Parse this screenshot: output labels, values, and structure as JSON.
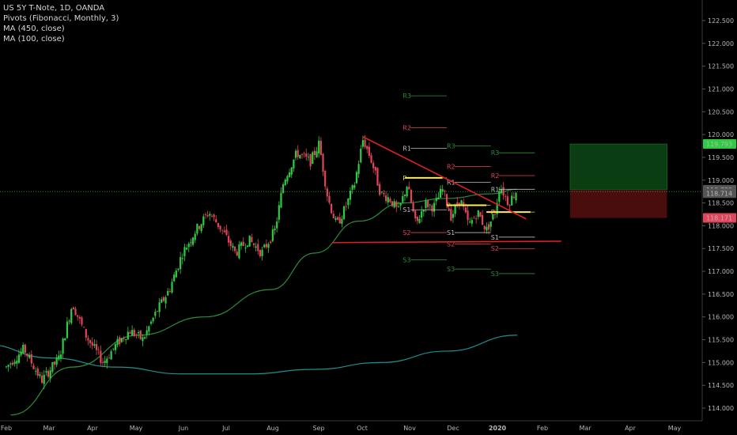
{
  "legend": {
    "symbol": "US 5Y T-Note, 1D, OANDA",
    "pivots": "Pivots (Fibonacci, Monthly, 3)",
    "ma450": "MA (450, close)",
    "ma100": "MA (100, close)"
  },
  "colors": {
    "background": "#000000",
    "candle_up": "#2ecc40",
    "candle_down": "#e0455a",
    "ma100": "#2e8b3a",
    "ma450": "#1f8f8f",
    "trendline": "#e02020",
    "support_line": "#ffee55",
    "pivot_r": "#e0455a",
    "pivot_s": "#e0455a",
    "pivot_r3": "#2e8b3a",
    "pivot_neutral": "#cccccc",
    "target_zone": "#0b3d12",
    "stop_zone": "#4a0d0d"
  },
  "chart_data": {
    "type": "candlestick",
    "title": "US 5Y T-Note, 1D, OANDA",
    "x_ticks": [
      "Feb",
      "Mar",
      "Apr",
      "May",
      "Jun",
      "Jul",
      "Aug",
      "Sep",
      "Oct",
      "Nov",
      "Dec",
      "2020",
      "Feb",
      "Mar",
      "Apr",
      "May"
    ],
    "y_ticks": [
      "122.500",
      "122.000",
      "121.500",
      "121.000",
      "120.500",
      "120.000",
      "119.500",
      "119.000",
      "118.500",
      "118.000",
      "117.500",
      "117.000",
      "116.500",
      "116.000",
      "115.500",
      "115.000",
      "114.500",
      "114.000"
    ],
    "ylim": [
      113.8,
      122.8
    ],
    "price_labels": [
      {
        "text": "119.793",
        "value": 119.793,
        "color": "#2ecc40"
      },
      {
        "text": "118.789",
        "value": 118.789,
        "color": "#555555"
      },
      {
        "text": "118.714",
        "value": 118.714,
        "color": "#555555"
      },
      {
        "text": "118.171",
        "value": 118.171,
        "color": "#e0455a"
      }
    ],
    "close_path": [
      [
        0,
        114.9
      ],
      [
        0.4,
        115.3
      ],
      [
        0.8,
        114.6
      ],
      [
        1.2,
        115.1
      ],
      [
        1.5,
        116.3
      ],
      [
        1.8,
        115.6
      ],
      [
        2.2,
        115.0
      ],
      [
        2.5,
        115.4
      ],
      [
        2.8,
        115.7
      ],
      [
        3.1,
        115.5
      ],
      [
        3.4,
        116.1
      ],
      [
        3.7,
        116.6
      ],
      [
        4.0,
        117.4
      ],
      [
        4.3,
        117.9
      ],
      [
        4.6,
        118.3
      ],
      [
        4.9,
        117.9
      ],
      [
        5.2,
        117.4
      ],
      [
        5.5,
        117.7
      ],
      [
        5.8,
        117.4
      ],
      [
        6.1,
        117.9
      ],
      [
        6.3,
        119.0
      ],
      [
        6.6,
        119.6
      ],
      [
        6.9,
        119.4
      ],
      [
        7.1,
        119.8
      ],
      [
        7.3,
        118.6
      ],
      [
        7.5,
        118.0
      ],
      [
        7.7,
        118.4
      ],
      [
        7.9,
        118.9
      ],
      [
        8.1,
        119.9
      ],
      [
        8.3,
        119.4
      ],
      [
        8.5,
        118.7
      ],
      [
        8.7,
        118.6
      ],
      [
        8.9,
        118.3
      ],
      [
        9.1,
        118.9
      ],
      [
        9.3,
        118.0
      ],
      [
        9.5,
        118.5
      ],
      [
        9.7,
        118.4
      ],
      [
        9.9,
        118.8
      ],
      [
        10.1,
        118.2
      ],
      [
        10.3,
        118.6
      ],
      [
        10.5,
        118.0
      ],
      [
        10.7,
        118.3
      ],
      [
        10.9,
        117.9
      ],
      [
        11.1,
        118.3
      ],
      [
        11.2,
        118.9
      ],
      [
        11.4,
        118.5
      ],
      [
        11.6,
        118.8
      ]
    ],
    "ma100_path": [
      [
        0.1,
        113.85
      ],
      [
        1.5,
        114.9
      ],
      [
        3.0,
        115.6
      ],
      [
        4.5,
        116.0
      ],
      [
        6.0,
        116.6
      ],
      [
        7.0,
        117.4
      ],
      [
        8.0,
        118.1
      ],
      [
        9.0,
        118.5
      ],
      [
        10.0,
        118.6
      ],
      [
        11.0,
        118.7
      ],
      [
        11.6,
        118.8
      ]
    ],
    "ma450_path": [
      [
        -0.5,
        115.4
      ],
      [
        1.0,
        115.1
      ],
      [
        2.5,
        114.9
      ],
      [
        4.0,
        114.75
      ],
      [
        5.5,
        114.75
      ],
      [
        7.0,
        114.85
      ],
      [
        8.5,
        115.0
      ],
      [
        10.0,
        115.25
      ],
      [
        11.6,
        115.6
      ]
    ],
    "trendlines": [
      {
        "kind": "resistance",
        "from": [
          8.1,
          119.95
        ],
        "to": [
          11.8,
          118.15
        ]
      },
      {
        "kind": "support",
        "from": [
          7.4,
          117.63
        ],
        "to": [
          12.6,
          117.66
        ]
      }
    ],
    "support_levels": [
      {
        "from": [
          9.05,
          119.05
        ],
        "to": [
          9.9,
          119.05
        ]
      },
      {
        "from": [
          10.0,
          118.45
        ],
        "to": [
          10.9,
          118.45
        ]
      },
      {
        "from": [
          10.9,
          118.3
        ],
        "to": [
          11.9,
          118.3
        ]
      }
    ],
    "pivots": [
      {
        "label": "R3",
        "value": 120.85,
        "from": 9.0,
        "to": 10.0,
        "tone": "green"
      },
      {
        "label": "R2",
        "value": 120.15,
        "from": 9.0,
        "to": 10.0,
        "tone": "red"
      },
      {
        "label": "R1",
        "value": 119.7,
        "from": 9.0,
        "to": 10.0,
        "tone": "neutral"
      },
      {
        "label": "P",
        "value": 119.05,
        "from": 9.0,
        "to": 10.0,
        "tone": "yellow"
      },
      {
        "label": "S1",
        "value": 118.35,
        "from": 9.0,
        "to": 10.0,
        "tone": "neutral"
      },
      {
        "label": "S2",
        "value": 117.85,
        "from": 9.0,
        "to": 10.0,
        "tone": "red"
      },
      {
        "label": "S3",
        "value": 117.25,
        "from": 9.0,
        "to": 10.0,
        "tone": "green"
      },
      {
        "label": "R3",
        "value": 119.75,
        "from": 10.0,
        "to": 11.0,
        "tone": "green"
      },
      {
        "label": "R2",
        "value": 119.3,
        "from": 10.0,
        "to": 11.0,
        "tone": "red"
      },
      {
        "label": "R1",
        "value": 118.95,
        "from": 10.0,
        "to": 11.0,
        "tone": "neutral"
      },
      {
        "label": "P",
        "value": 118.45,
        "from": 10.0,
        "to": 11.0,
        "tone": "yellow"
      },
      {
        "label": "S1",
        "value": 117.85,
        "from": 10.0,
        "to": 11.0,
        "tone": "neutral"
      },
      {
        "label": "S2",
        "value": 117.6,
        "from": 10.0,
        "to": 11.0,
        "tone": "red"
      },
      {
        "label": "S3",
        "value": 117.05,
        "from": 10.0,
        "to": 11.0,
        "tone": "green"
      },
      {
        "label": "R3",
        "value": 119.6,
        "from": 11.0,
        "to": 12.0,
        "tone": "green"
      },
      {
        "label": "R2",
        "value": 119.1,
        "from": 11.0,
        "to": 12.0,
        "tone": "red"
      },
      {
        "label": "R1",
        "value": 118.8,
        "from": 11.0,
        "to": 12.0,
        "tone": "neutral"
      },
      {
        "label": "P",
        "value": 118.3,
        "from": 11.0,
        "to": 12.0,
        "tone": "yellow"
      },
      {
        "label": "S1",
        "value": 117.75,
        "from": 11.0,
        "to": 12.0,
        "tone": "neutral"
      },
      {
        "label": "S2",
        "value": 117.5,
        "from": 11.0,
        "to": 12.0,
        "tone": "red"
      },
      {
        "label": "S3",
        "value": 116.95,
        "from": 11.0,
        "to": 12.0,
        "tone": "green"
      }
    ],
    "target_zone": {
      "x_from": 12.8,
      "x_to": 15.0,
      "top": 119.793,
      "bottom": 118.789
    },
    "stop_zone": {
      "x_from": 12.8,
      "x_to": 15.0,
      "top": 118.789,
      "bottom": 118.171
    },
    "current_price_line": 118.75
  }
}
